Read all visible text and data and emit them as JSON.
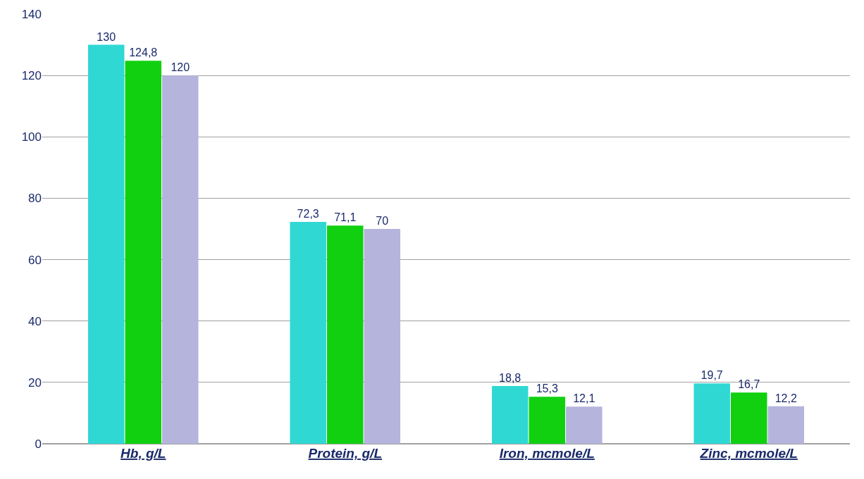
{
  "chart_data": {
    "type": "bar",
    "categories": [
      "Hb, g/L",
      "Protein, g/L",
      "Iron, mcmole/L",
      "Zinc, mcmole/L"
    ],
    "series": [
      {
        "color": "#30d8d4",
        "values": [
          130,
          72.3,
          18.8,
          19.7
        ],
        "value_labels": [
          "130",
          "72,3",
          "18,8",
          "19,7"
        ]
      },
      {
        "color": "#10d010",
        "values": [
          124.8,
          71.1,
          15.3,
          16.7
        ],
        "value_labels": [
          "124,8",
          "71,1",
          "15,3",
          "16,7"
        ]
      },
      {
        "color": "#b4b4dc",
        "values": [
          120,
          70,
          12.1,
          12.2
        ],
        "value_labels": [
          "120",
          "70",
          "12,1",
          "12,2"
        ]
      }
    ],
    "ylim": [
      0,
      140
    ],
    "yticks": [
      0,
      20,
      40,
      60,
      80,
      100,
      120,
      140
    ],
    "grid": "y"
  }
}
